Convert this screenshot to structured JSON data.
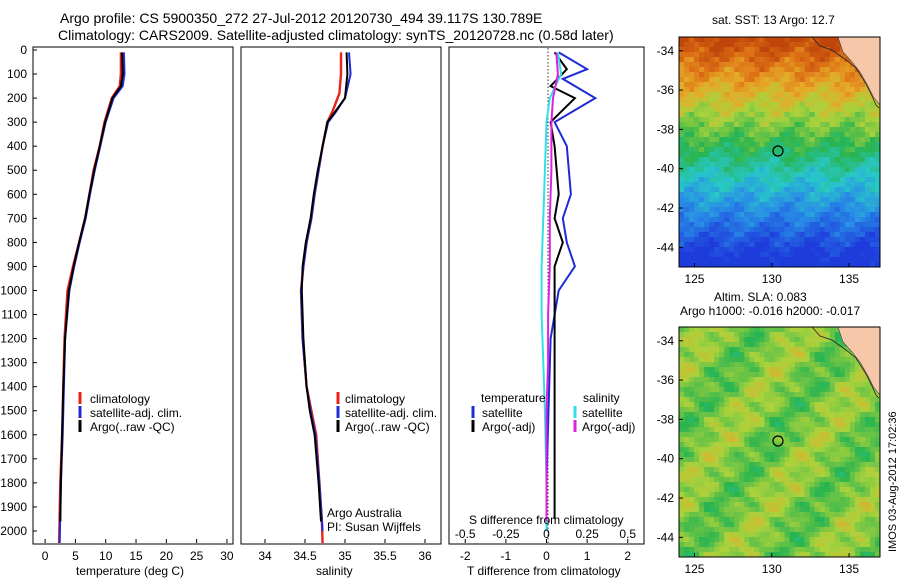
{
  "header": {
    "line1": "Argo profile: CS 5900350_272 27-Jul-2012 20120730_494 39.117S 130.789E",
    "line2": "Climatology: CARS2009. Satellite-adjusted climatology: synTS_20120728.nc (0.58d later)"
  },
  "colors": {
    "climatology": "#e8221b",
    "satellite": "#1f2bd6",
    "argo": "#000000",
    "salinity_satellite": "#30e0e8",
    "salinity_argo": "#e020e0"
  },
  "depth_ticks": [
    "0",
    "100",
    "200",
    "300",
    "400",
    "500",
    "600",
    "700",
    "800",
    "900",
    "1000",
    "1100",
    "1200",
    "1300",
    "1400",
    "1500",
    "1600",
    "1700",
    "1800",
    "1900",
    "2000"
  ],
  "panel_temp": {
    "xlabel": "temperature (deg C)",
    "xticks": [
      "0",
      "5",
      "10",
      "15",
      "20",
      "25",
      "30"
    ],
    "legend": [
      "climatology",
      "satellite-adj. clim.",
      "Argo(..raw -QC)"
    ]
  },
  "panel_sal": {
    "xlabel": "salinity",
    "xticks": [
      "34",
      "34.5",
      "35",
      "35.5",
      "36"
    ],
    "legend": [
      "climatology",
      "satellite-adj. clim.",
      "Argo(..raw -QC)"
    ],
    "note1": "Argo Australia",
    "note2": "PI: Susan Wijffels"
  },
  "panel_diff": {
    "xlabel": "T difference from climatology",
    "xticks": [
      "-2",
      "-1",
      "0",
      "1",
      "2"
    ],
    "s_label": "S difference from climatology",
    "s_ticks": [
      "-0.5",
      "-0.25",
      "0",
      "0.25",
      "0.5"
    ],
    "legend_t_title": "temperature",
    "legend_s_title": "salinity",
    "legend_t": [
      "satellite",
      "Argo(-adj)"
    ],
    "legend_s": [
      "satellite",
      "Argo(-adj)"
    ]
  },
  "map_sst": {
    "title": "sat. SST: 13 Argo: 12.7",
    "yticks": [
      "-34",
      "-36",
      "-38",
      "-40",
      "-42",
      "-44"
    ],
    "xticks": [
      "125",
      "130",
      "135"
    ]
  },
  "map_sla": {
    "title1": "Altim. SLA: 0.083",
    "title2": "Argo h1000: -0.016 h2000: -0.017",
    "yticks": [
      "-34",
      "-36",
      "-38",
      "-40",
      "-42",
      "-44"
    ],
    "xticks": [
      "125",
      "130",
      "135"
    ]
  },
  "footer": "IMOS 03-Aug-2012 17:02:36",
  "chart_data": [
    {
      "type": "line",
      "title": "",
      "xlabel": "temperature (deg C)",
      "ylabel": "",
      "xlim": [
        -2,
        31
      ],
      "ylim": [
        2050,
        0
      ],
      "series": [
        {
          "name": "climatology",
          "x": [
            12.5,
            12.5,
            12.3,
            11.0,
            9.8,
            9.0,
            8.0,
            7.3,
            6.6,
            5.6,
            4.6,
            3.7,
            3.2,
            3.0,
            2.8,
            2.5,
            2.3
          ],
          "y": [
            10,
            100,
            150,
            200,
            300,
            400,
            500,
            600,
            700,
            800,
            900,
            1000,
            1200,
            1400,
            1600,
            1800,
            2050
          ]
        },
        {
          "name": "satellite-adj. clim.",
          "x": [
            13.0,
            13.1,
            12.8,
            11.3,
            10.0,
            9.1,
            8.2,
            7.4,
            6.7,
            5.7,
            4.8,
            4.0,
            3.3,
            3.1,
            2.9,
            2.6,
            2.4
          ],
          "y": [
            10,
            100,
            150,
            200,
            300,
            400,
            500,
            600,
            700,
            800,
            900,
            1000,
            1200,
            1400,
            1600,
            1800,
            2050
          ]
        },
        {
          "name": "Argo(..raw -QC)",
          "x": [
            12.7,
            12.8,
            12.5,
            11.1,
            9.9,
            9.0,
            8.1,
            7.3,
            6.6,
            5.6,
            4.7,
            3.9,
            3.3,
            3.0,
            2.8,
            2.6,
            2.5
          ],
          "y": [
            10,
            100,
            150,
            200,
            300,
            400,
            500,
            600,
            700,
            800,
            900,
            1000,
            1200,
            1400,
            1600,
            1800,
            1960
          ]
        }
      ]
    },
    {
      "type": "line",
      "title": "",
      "xlabel": "salinity",
      "ylabel": "",
      "xlim": [
        33.7,
        36.2
      ],
      "ylim": [
        2050,
        0
      ],
      "series": [
        {
          "name": "climatology",
          "x": [
            34.95,
            34.95,
            34.93,
            34.85,
            34.78,
            34.72,
            34.67,
            34.62,
            34.58,
            34.52,
            34.48,
            34.45,
            34.47,
            34.52,
            34.58,
            34.64,
            34.68,
            34.71,
            34.72
          ],
          "y": [
            10,
            100,
            180,
            250,
            300,
            400,
            500,
            600,
            700,
            800,
            900,
            1000,
            1200,
            1400,
            1500,
            1600,
            1800,
            1950,
            2050
          ]
        },
        {
          "name": "satellite-adj. clim.",
          "x": [
            35.05,
            35.07,
            35.0,
            34.88,
            34.79,
            34.72,
            34.67,
            34.62,
            34.58,
            34.52,
            34.48,
            34.45,
            34.47,
            34.52,
            34.57,
            34.63,
            34.68,
            34.71,
            34.72
          ],
          "y": [
            10,
            100,
            200,
            260,
            300,
            400,
            500,
            600,
            700,
            800,
            900,
            1000,
            1200,
            1400,
            1500,
            1600,
            1800,
            1950,
            2000
          ]
        },
        {
          "name": "Argo(..raw -QC)",
          "x": [
            35.02,
            35.03,
            35.0,
            34.87,
            34.78,
            34.72,
            34.66,
            34.61,
            34.57,
            34.51,
            34.47,
            34.46,
            34.48,
            34.52,
            34.56,
            34.62,
            34.67,
            34.7
          ],
          "y": [
            10,
            100,
            200,
            260,
            300,
            400,
            500,
            600,
            700,
            800,
            900,
            1000,
            1200,
            1400,
            1500,
            1600,
            1800,
            1960
          ]
        }
      ]
    },
    {
      "type": "line",
      "title": "",
      "xlabel": "T difference from climatology",
      "ylabel": "",
      "xlim": [
        -2.4,
        2.4
      ],
      "ylim": [
        2050,
        0
      ],
      "series": [
        {
          "name": "satellite",
          "x": [
            0.3,
            1.0,
            0.4,
            1.2,
            0.2,
            0.5,
            0.6,
            0.4,
            0.5,
            0.7,
            0.3,
            0.1,
            0.05,
            0.0,
            0.0
          ],
          "y": [
            10,
            80,
            120,
            200,
            300,
            400,
            600,
            700,
            800,
            900,
            1000,
            1200,
            1500,
            1800,
            2000
          ]
        },
        {
          "name": "Argo(-adj)",
          "x": [
            0.2,
            0.5,
            0.1,
            0.7,
            0.1,
            0.2,
            0.3,
            0.2,
            0.4,
            0.2,
            0.2,
            0.2,
            0.2,
            0.2,
            0.2
          ],
          "y": [
            10,
            80,
            150,
            200,
            300,
            400,
            600,
            700,
            800,
            900,
            1000,
            1200,
            1500,
            1800,
            1950
          ]
        }
      ]
    },
    {
      "type": "line",
      "title": "",
      "xlabel": "S difference from climatology",
      "ylabel": "",
      "xlim": [
        -0.6,
        0.6
      ],
      "ylim": [
        2050,
        0
      ],
      "series": [
        {
          "name": "satellite",
          "x": [
            0.07,
            0.09,
            0.02,
            0.0,
            -0.01,
            -0.02,
            -0.03,
            -0.03,
            -0.02,
            -0.01,
            0.0,
            0.0
          ],
          "y": [
            10,
            100,
            200,
            300,
            500,
            700,
            900,
            1100,
            1300,
            1500,
            1800,
            2000
          ]
        },
        {
          "name": "Argo(-adj)",
          "x": [
            0.06,
            0.07,
            0.04,
            0.03,
            0.03,
            0.02,
            0.02,
            0.01,
            0.01,
            0.0,
            0.0
          ],
          "y": [
            10,
            100,
            200,
            300,
            500,
            700,
            900,
            1100,
            1300,
            1500,
            1960
          ]
        }
      ]
    },
    {
      "type": "heatmap",
      "title": "sat. SST: 13 Argo: 12.7",
      "xlim": [
        124,
        137
      ],
      "ylim": [
        -45,
        -33.3
      ],
      "xticks": [
        "125",
        "130",
        "135"
      ],
      "yticks": [
        "-34",
        "-36",
        "-38",
        "-40",
        "-42",
        "-44"
      ],
      "marker": {
        "lon": 130.789,
        "lat": -39.117
      }
    },
    {
      "type": "heatmap",
      "title": "Altim. SLA: 0.083",
      "xlim": [
        124,
        137
      ],
      "ylim": [
        -45,
        -33.3
      ],
      "xticks": [
        "125",
        "130",
        "135"
      ],
      "yticks": [
        "-34",
        "-36",
        "-38",
        "-40",
        "-42",
        "-44"
      ],
      "marker": {
        "lon": 130.789,
        "lat": -39.117
      }
    }
  ]
}
